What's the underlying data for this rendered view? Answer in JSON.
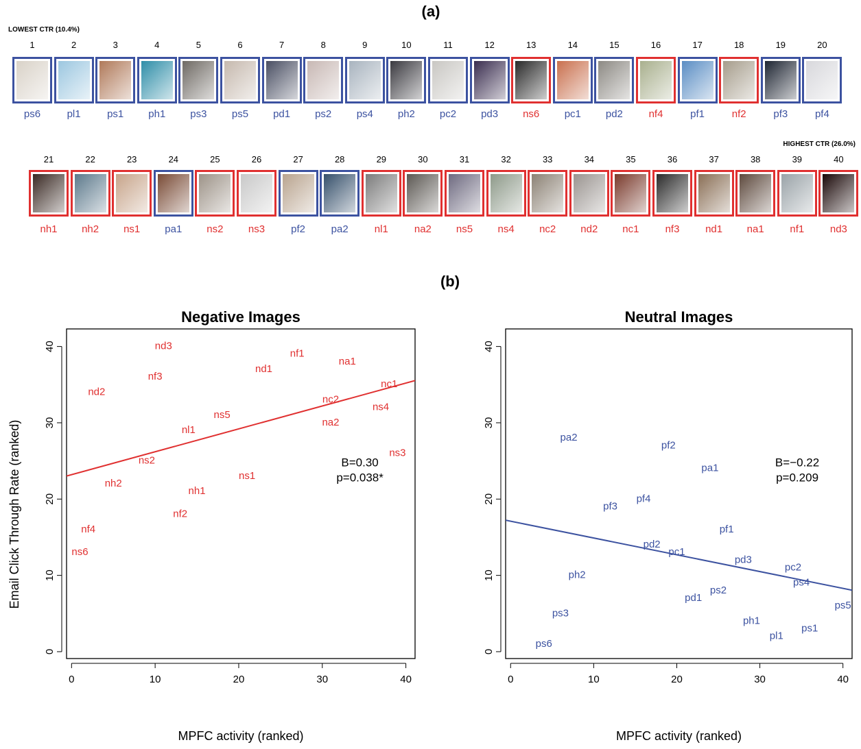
{
  "panel_a_label": "(a)",
  "panel_b_label": "(b)",
  "lowest_ctr_label": "LOWEST CTR (10.4%)",
  "highest_ctr_label": "HIGHEST CTR (26.0%)",
  "colors": {
    "negative": "#e03030",
    "neutral": "#3c52a0"
  },
  "image_strip": {
    "row1": [
      {
        "rank": "1",
        "code": "ps6",
        "valence": "neutral",
        "tone": "#d9d2c8"
      },
      {
        "rank": "2",
        "code": "pl1",
        "valence": "neutral",
        "tone": "#9cc7e0"
      },
      {
        "rank": "3",
        "code": "ps1",
        "valence": "neutral",
        "tone": "#b07a5a"
      },
      {
        "rank": "4",
        "code": "ph1",
        "valence": "neutral",
        "tone": "#2f8ea8"
      },
      {
        "rank": "5",
        "code": "ps3",
        "valence": "neutral",
        "tone": "#6f6a64"
      },
      {
        "rank": "6",
        "code": "ps5",
        "valence": "neutral",
        "tone": "#c6b9ae"
      },
      {
        "rank": "7",
        "code": "pd1",
        "valence": "neutral",
        "tone": "#4a4f63"
      },
      {
        "rank": "8",
        "code": "ps2",
        "valence": "neutral",
        "tone": "#c8b8b4"
      },
      {
        "rank": "9",
        "code": "ps4",
        "valence": "neutral",
        "tone": "#a9b4bf"
      },
      {
        "rank": "10",
        "code": "ph2",
        "valence": "neutral",
        "tone": "#3b3a40"
      },
      {
        "rank": "11",
        "code": "pc2",
        "valence": "neutral",
        "tone": "#c9c7c3"
      },
      {
        "rank": "12",
        "code": "pd3",
        "valence": "neutral",
        "tone": "#3a2d4f"
      },
      {
        "rank": "13",
        "code": "ns6",
        "valence": "negative",
        "tone": "#2a2a2a"
      },
      {
        "rank": "14",
        "code": "pc1",
        "valence": "neutral",
        "tone": "#c9704e"
      },
      {
        "rank": "15",
        "code": "pd2",
        "valence": "neutral",
        "tone": "#8d8a84"
      },
      {
        "rank": "16",
        "code": "nf4",
        "valence": "negative",
        "tone": "#a9b08e"
      },
      {
        "rank": "17",
        "code": "pf1",
        "valence": "neutral",
        "tone": "#5b8ec4"
      },
      {
        "rank": "18",
        "code": "nf2",
        "valence": "negative",
        "tone": "#a69d8c"
      },
      {
        "rank": "19",
        "code": "pf3",
        "valence": "neutral",
        "tone": "#1f2633"
      },
      {
        "rank": "20",
        "code": "pf4",
        "valence": "neutral",
        "tone": "#d8d8dc"
      }
    ],
    "row2": [
      {
        "rank": "21",
        "code": "nh1",
        "valence": "negative",
        "tone": "#3a2a24"
      },
      {
        "rank": "22",
        "code": "nh2",
        "valence": "negative",
        "tone": "#5d7a8c"
      },
      {
        "rank": "23",
        "code": "ns1",
        "valence": "negative",
        "tone": "#c7a48a"
      },
      {
        "rank": "24",
        "code": "pa1",
        "valence": "neutral",
        "tone": "#7a4b36"
      },
      {
        "rank": "25",
        "code": "ns2",
        "valence": "negative",
        "tone": "#9d9388"
      },
      {
        "rank": "26",
        "code": "ns3",
        "valence": "negative",
        "tone": "#c9c9c9"
      },
      {
        "rank": "27",
        "code": "pf2",
        "valence": "neutral",
        "tone": "#b9a48f"
      },
      {
        "rank": "28",
        "code": "pa2",
        "valence": "neutral",
        "tone": "#36506b"
      },
      {
        "rank": "29",
        "code": "nl1",
        "valence": "negative",
        "tone": "#7c7c7c"
      },
      {
        "rank": "30",
        "code": "na2",
        "valence": "negative",
        "tone": "#5c5853"
      },
      {
        "rank": "31",
        "code": "ns5",
        "valence": "negative",
        "tone": "#6e6a80"
      },
      {
        "rank": "32",
        "code": "ns4",
        "valence": "negative",
        "tone": "#8e9a8a"
      },
      {
        "rank": "33",
        "code": "nc2",
        "valence": "negative",
        "tone": "#8c8275"
      },
      {
        "rank": "34",
        "code": "nd2",
        "valence": "negative",
        "tone": "#9a9490"
      },
      {
        "rank": "35",
        "code": "nc1",
        "valence": "negative",
        "tone": "#7a3a2c"
      },
      {
        "rank": "36",
        "code": "nf3",
        "valence": "negative",
        "tone": "#2b2b2b"
      },
      {
        "rank": "37",
        "code": "nd1",
        "valence": "negative",
        "tone": "#8a6f56"
      },
      {
        "rank": "38",
        "code": "na1",
        "valence": "negative",
        "tone": "#5e4a3e"
      },
      {
        "rank": "39",
        "code": "nf1",
        "valence": "negative",
        "tone": "#9aa3a8"
      },
      {
        "rank": "40",
        "code": "nd3",
        "valence": "negative",
        "tone": "#1a0808"
      }
    ]
  },
  "chart_data": [
    {
      "type": "scatter",
      "title": "Negative Images",
      "xlabel": "MPFC activity (ranked)",
      "ylabel": "Email Click Through Rate (ranked)",
      "xlim": [
        0,
        41
      ],
      "ylim": [
        0,
        41
      ],
      "x_ticks": [
        "0",
        "10",
        "20",
        "30",
        "40"
      ],
      "y_ticks": [
        "0",
        "10",
        "20",
        "30",
        "40"
      ],
      "color": "#e03030",
      "points": [
        {
          "label": "nd3",
          "x": 11,
          "y": 40
        },
        {
          "label": "nf1",
          "x": 27,
          "y": 39
        },
        {
          "label": "na1",
          "x": 33,
          "y": 38
        },
        {
          "label": "nd1",
          "x": 23,
          "y": 37
        },
        {
          "label": "nf3",
          "x": 10,
          "y": 36
        },
        {
          "label": "nc1",
          "x": 38,
          "y": 35
        },
        {
          "label": "nd2",
          "x": 3,
          "y": 34
        },
        {
          "label": "nc2",
          "x": 31,
          "y": 33
        },
        {
          "label": "ns4",
          "x": 37,
          "y": 32
        },
        {
          "label": "ns5",
          "x": 18,
          "y": 31
        },
        {
          "label": "na2",
          "x": 31,
          "y": 30
        },
        {
          "label": "nl1",
          "x": 14,
          "y": 29
        },
        {
          "label": "ns3",
          "x": 39,
          "y": 26
        },
        {
          "label": "ns2",
          "x": 9,
          "y": 25
        },
        {
          "label": "ns1",
          "x": 21,
          "y": 23
        },
        {
          "label": "nh2",
          "x": 5,
          "y": 22
        },
        {
          "label": "nh1",
          "x": 15,
          "y": 21
        },
        {
          "label": "nf2",
          "x": 13,
          "y": 18
        },
        {
          "label": "nf4",
          "x": 2,
          "y": 16
        },
        {
          "label": "ns6",
          "x": 1,
          "y": 13
        }
      ],
      "fit": {
        "intercept": 23.2,
        "slope": 0.3
      },
      "stats": [
        "B=0.30",
        "p=0.038*"
      ]
    },
    {
      "type": "scatter",
      "title": "Neutral Images",
      "xlabel": "MPFC activity (ranked)",
      "ylabel": "",
      "xlim": [
        0,
        41
      ],
      "ylim": [
        0,
        41
      ],
      "x_ticks": [
        "0",
        "10",
        "20",
        "30",
        "40"
      ],
      "y_ticks": [
        "0",
        "10",
        "20",
        "30",
        "40"
      ],
      "color": "#3c52a0",
      "points": [
        {
          "label": "pa2",
          "x": 7,
          "y": 28
        },
        {
          "label": "pf2",
          "x": 19,
          "y": 27
        },
        {
          "label": "pa1",
          "x": 24,
          "y": 24
        },
        {
          "label": "pf4",
          "x": 16,
          "y": 20
        },
        {
          "label": "pf3",
          "x": 12,
          "y": 19
        },
        {
          "label": "pf1",
          "x": 26,
          "y": 16
        },
        {
          "label": "pd2",
          "x": 17,
          "y": 14
        },
        {
          "label": "pc1",
          "x": 20,
          "y": 13
        },
        {
          "label": "pd3",
          "x": 28,
          "y": 12
        },
        {
          "label": "pc2",
          "x": 34,
          "y": 11
        },
        {
          "label": "ph2",
          "x": 8,
          "y": 10
        },
        {
          "label": "ps4",
          "x": 35,
          "y": 9
        },
        {
          "label": "ps2",
          "x": 25,
          "y": 8
        },
        {
          "label": "pd1",
          "x": 22,
          "y": 7
        },
        {
          "label": "ps5",
          "x": 40,
          "y": 6
        },
        {
          "label": "ps3",
          "x": 6,
          "y": 5
        },
        {
          "label": "ph1",
          "x": 29,
          "y": 4
        },
        {
          "label": "ps1",
          "x": 36,
          "y": 3
        },
        {
          "label": "pl1",
          "x": 32,
          "y": 2
        },
        {
          "label": "ps6",
          "x": 4,
          "y": 1
        }
      ],
      "fit": {
        "intercept": 17.1,
        "slope": -0.22
      },
      "stats": [
        "B=−0.22",
        "p=0.209"
      ]
    }
  ]
}
